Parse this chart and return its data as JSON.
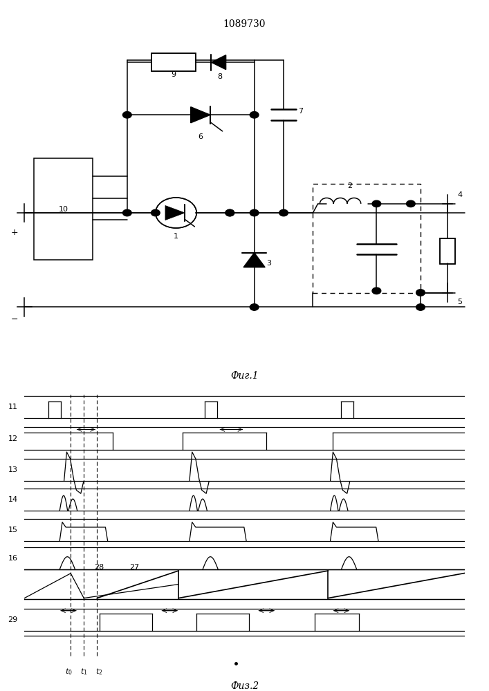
{
  "title": "1089730",
  "fig1_caption": "Фиг.1",
  "fig2_caption": "Физ.2",
  "bg_color": "#ffffff"
}
